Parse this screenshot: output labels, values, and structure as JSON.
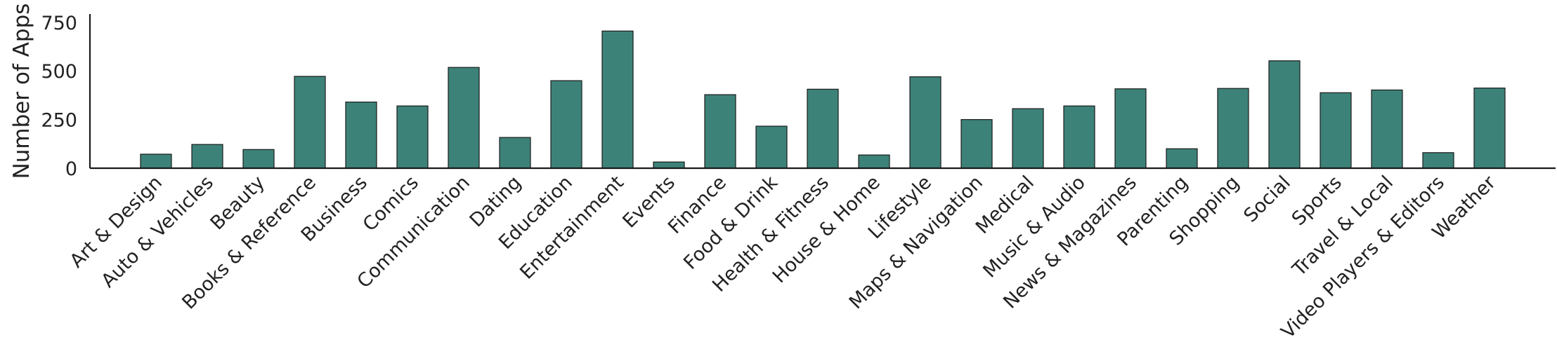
{
  "chart_data": {
    "type": "bar",
    "title": "",
    "xlabel": "",
    "ylabel": "Number of Apps",
    "ylim": [
      0,
      800
    ],
    "yticks": [
      "0",
      "250",
      "500",
      "750"
    ],
    "grid": false,
    "bar_color": "#3d8279",
    "categories": [
      "Art & Design",
      "Auto & Vehicles",
      "Beauty",
      "Books & Reference",
      "Business",
      "Comics",
      "Communication",
      "Dating",
      "Education",
      "Entertainment",
      "Events",
      "Finance",
      "Food & Drink",
      "Health & Fitness",
      "House & Home",
      "Lifestyle",
      "Maps & Navigation",
      "Medical",
      "Music & Audio",
      "News & Magazines",
      "Parenting",
      "Shopping",
      "Social",
      "Sports",
      "Travel & Local",
      "Video Players & Editors",
      "Weather"
    ],
    "values": [
      72,
      122,
      96,
      472,
      340,
      320,
      518,
      158,
      450,
      705,
      32,
      378,
      216,
      406,
      68,
      470,
      250,
      306,
      320,
      408,
      100,
      410,
      552,
      388,
      402,
      80,
      412
    ]
  }
}
